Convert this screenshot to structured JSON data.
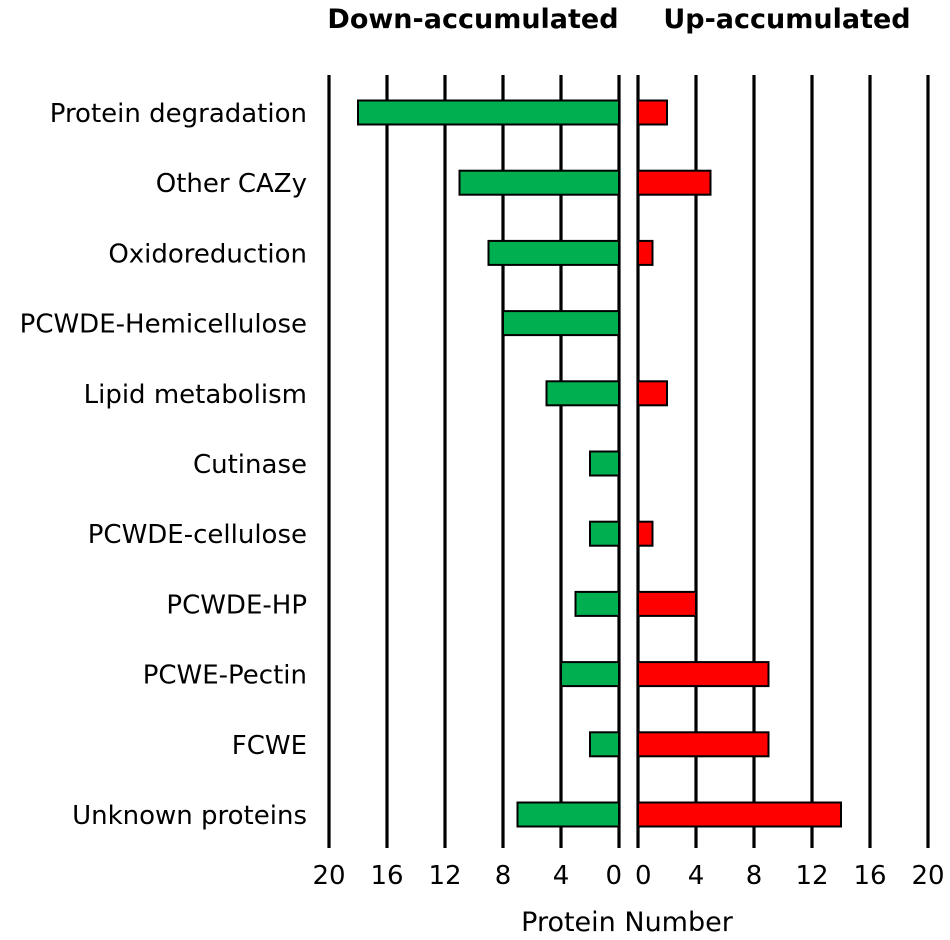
{
  "chart_data": {
    "type": "bar",
    "orientation": "horizontal-diverging",
    "panels": [
      {
        "name": "Down-accumulated",
        "direction": "left",
        "color": "#00b050"
      },
      {
        "name": "Up-accumulated",
        "direction": "right",
        "color": "#ff0000"
      }
    ],
    "categories": [
      "Protein degradation",
      "Other CAZy",
      "Oxidoreduction",
      "PCWDE-Hemicellulose",
      "Lipid metabolism",
      "Cutinase",
      "PCWDE-cellulose",
      "PCWDE-HP",
      "PCWE-Pectin",
      "FCWE",
      "Unknown proteins"
    ],
    "series": [
      {
        "name": "Down-accumulated",
        "values": [
          18,
          11,
          9,
          8,
          5,
          2,
          2,
          3,
          4,
          2,
          7
        ]
      },
      {
        "name": "Up-accumulated",
        "values": [
          2,
          5,
          1,
          0,
          2,
          0,
          1,
          4,
          9,
          9,
          14
        ]
      }
    ],
    "xlabel": "Protein Number",
    "ticks": [
      0,
      4,
      8,
      12,
      16,
      20
    ],
    "tick_labels": [
      "0",
      "4",
      "8",
      "12",
      "16",
      "20"
    ],
    "xlim": [
      0,
      20
    ],
    "grid": true
  }
}
